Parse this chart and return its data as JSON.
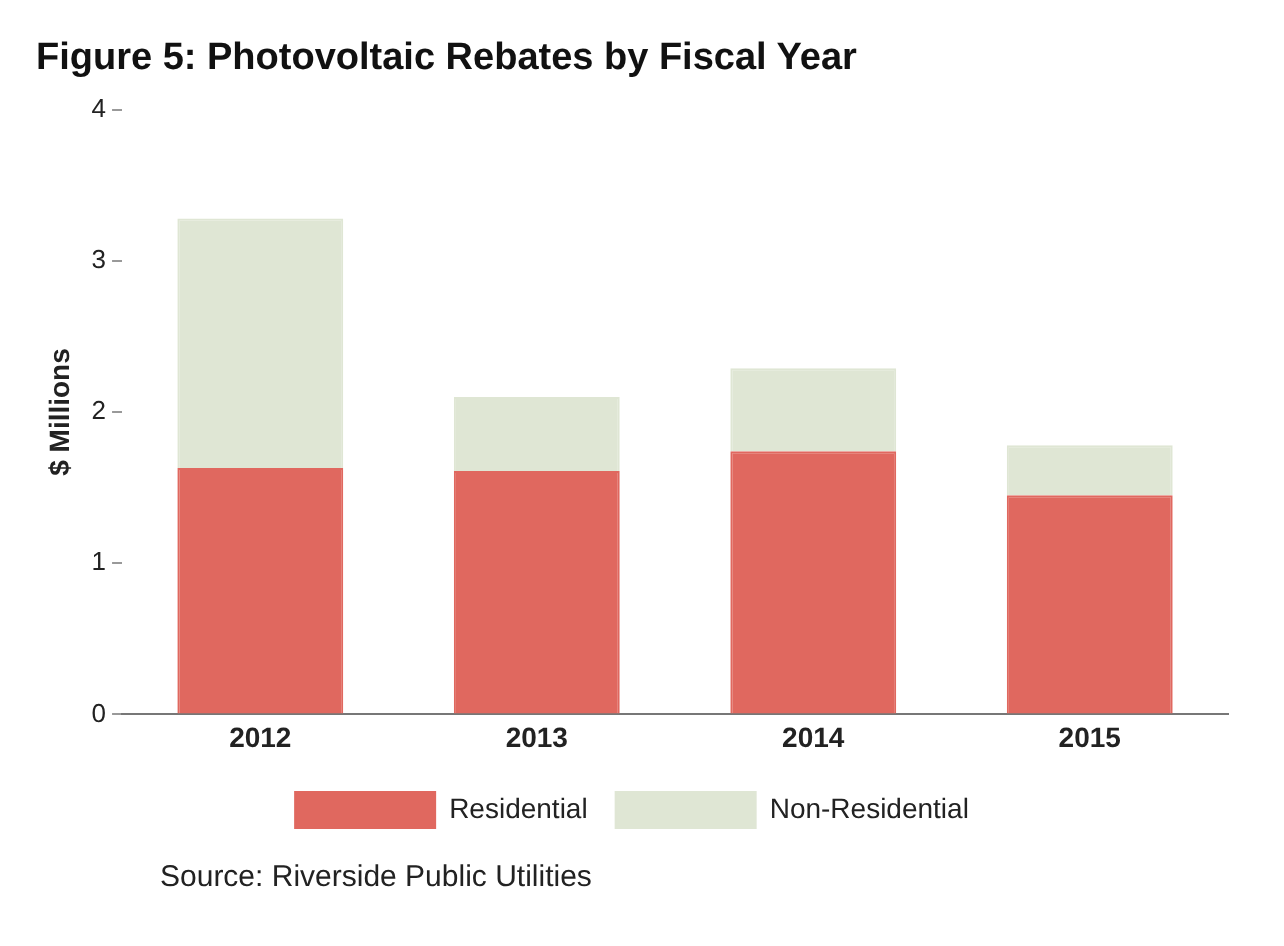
{
  "chart_data": {
    "type": "bar",
    "title": "Figure 5: Photovoltaic Rebates by Fiscal Year",
    "ylabel": "$ Millions",
    "categories": [
      "2012",
      "2013",
      "2014",
      "2015"
    ],
    "stacked": true,
    "series": [
      {
        "name": "Residential",
        "color": "#e0685f",
        "values": [
          1.63,
          1.61,
          1.74,
          1.45
        ]
      },
      {
        "name": "Non-Residential",
        "color": "#dfe6d4",
        "values": [
          1.65,
          0.49,
          0.55,
          0.33
        ]
      }
    ],
    "ylim": [
      0,
      4
    ],
    "yticks": [
      0,
      1,
      2,
      3,
      4
    ],
    "grid": false,
    "legend": "bottom",
    "annotations": [
      "Source: Riverside Public Utilities"
    ]
  }
}
